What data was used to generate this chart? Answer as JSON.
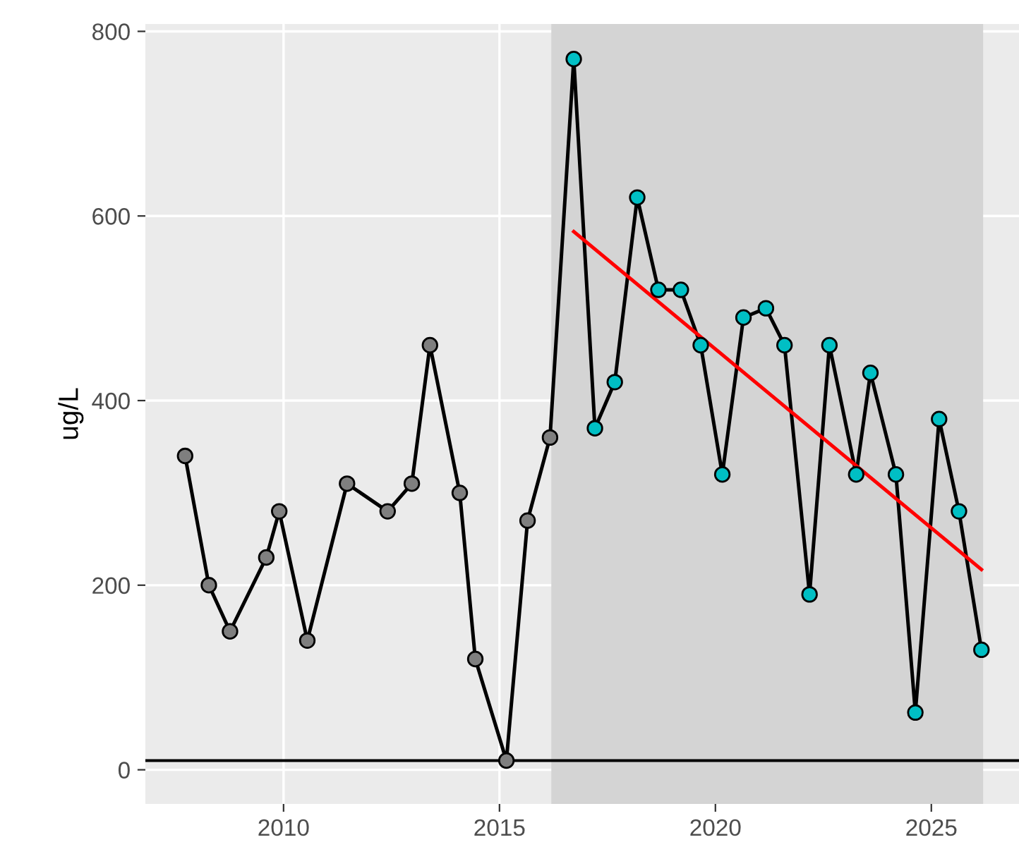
{
  "chart_data": {
    "type": "line",
    "ylabel": "ug/L",
    "xlim": [
      2006.8,
      2027.03
    ],
    "ylim": [
      -37,
      808
    ],
    "xticks": [
      2010,
      2015,
      2020,
      2025
    ],
    "yticks": [
      0,
      200,
      400,
      600,
      800
    ],
    "grid": true,
    "bands": [
      {
        "axis": "x",
        "from": 2016.2,
        "to": 2026.2,
        "color": "#d4d4d4"
      }
    ],
    "ref_lines": [
      {
        "axis": "y",
        "value": 10,
        "color": "#000000",
        "line_style": "solid"
      }
    ],
    "series": [
      {
        "color": "#000000",
        "marker": "none",
        "x": [
          2007.72,
          2008.27,
          2008.76,
          2009.6,
          2009.9,
          2010.55,
          2011.47,
          2012.41,
          2012.97,
          2013.39,
          2014.08,
          2014.44,
          2015.16,
          2015.65,
          2016.17,
          2016.72,
          2017.21,
          2017.67,
          2018.19,
          2018.68,
          2019.2,
          2019.66,
          2020.16,
          2020.65,
          2021.17,
          2021.6,
          2022.18,
          2022.64,
          2023.26,
          2023.59,
          2024.18,
          2024.63,
          2025.18,
          2025.64,
          2026.16
        ],
        "values": [
          340,
          200,
          150,
          230,
          280,
          140,
          310,
          280,
          310,
          460,
          300,
          120,
          10,
          270,
          360,
          770,
          370,
          420,
          620,
          520,
          520,
          460,
          320,
          490,
          500,
          460,
          190,
          460,
          320,
          430,
          320,
          62,
          380,
          280,
          130
        ]
      },
      {
        "type": "scatter",
        "color": "#7f7f7f",
        "marker": "circle",
        "x": [
          2007.72,
          2008.27,
          2008.76,
          2009.6,
          2009.9,
          2010.55,
          2011.47,
          2012.41,
          2012.97,
          2013.39,
          2014.08,
          2014.44,
          2015.16,
          2015.65,
          2016.17
        ],
        "values": [
          340,
          200,
          150,
          230,
          280,
          140,
          310,
          280,
          310,
          460,
          300,
          120,
          10,
          270,
          360
        ]
      },
      {
        "type": "scatter",
        "color": "#00bfc4",
        "marker": "circle",
        "x": [
          2016.72,
          2017.21,
          2017.67,
          2018.19,
          2018.68,
          2019.2,
          2019.66,
          2020.16,
          2020.65,
          2021.17,
          2021.6,
          2022.18,
          2022.64,
          2023.26,
          2023.59,
          2024.18,
          2024.63,
          2025.18,
          2025.64,
          2026.16
        ],
        "values": [
          770,
          370,
          420,
          620,
          520,
          520,
          460,
          320,
          490,
          500,
          460,
          190,
          460,
          320,
          430,
          320,
          62,
          380,
          280,
          130
        ]
      },
      {
        "type": "line",
        "color": "#ff0000",
        "marker": "none",
        "x": [
          2016.72,
          2026.16
        ],
        "values": [
          583,
          217
        ]
      }
    ]
  }
}
